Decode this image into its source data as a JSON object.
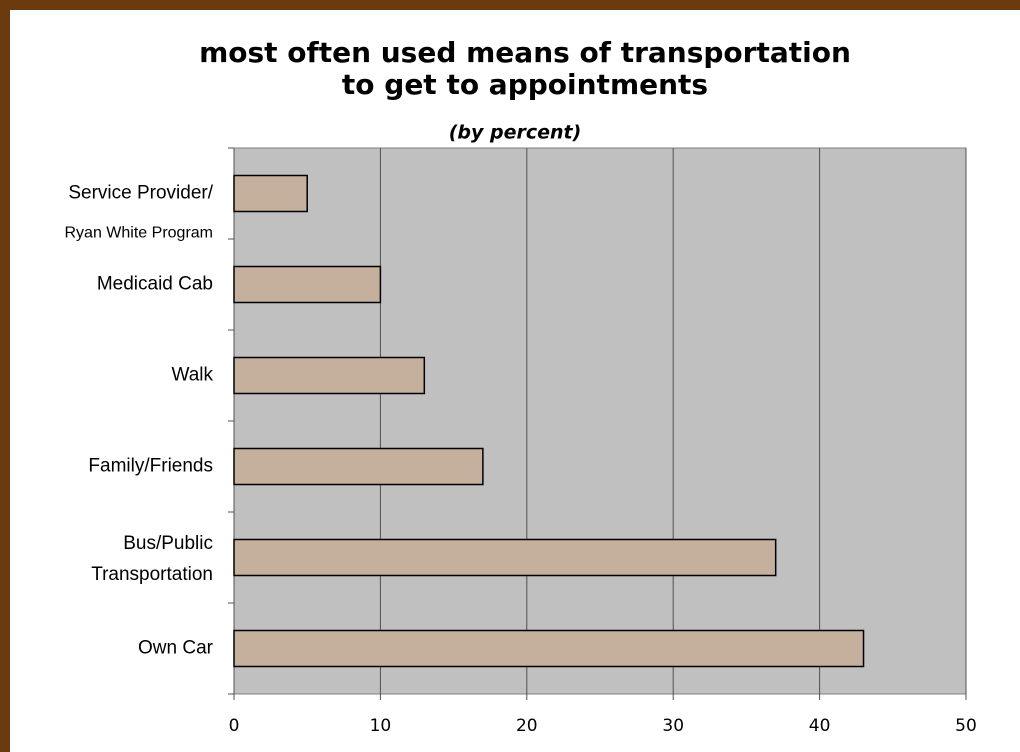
{
  "chart_data": {
    "type": "bar",
    "orientation": "horizontal",
    "title": "most often used means of transportation\nto get to appointments",
    "subtitle": "(by percent)",
    "categories": [
      "Service Provider/\nRyan White Program",
      "Medicaid Cab",
      "Walk",
      "Family/Friends",
      "Bus/Public\nTransportation",
      "Own Car"
    ],
    "values": [
      5,
      10,
      13,
      17,
      37,
      43
    ],
    "color": "#c4b09c",
    "xlim": [
      0,
      50
    ],
    "xticks": [
      0,
      10,
      20,
      30,
      40,
      50
    ],
    "grid": true
  }
}
